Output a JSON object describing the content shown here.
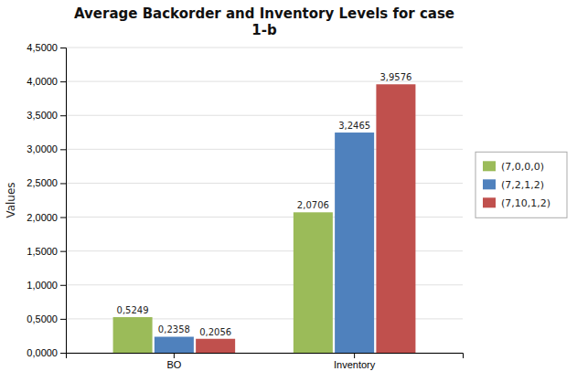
{
  "chart_data": {
    "type": "bar",
    "title": "Average Backorder and Inventory Levels for case\n1-b",
    "categories": [
      "BO",
      "Inventory"
    ],
    "series": [
      {
        "name": "(7,0,0,0)",
        "color": "#9BBB59",
        "values": [
          0.5249,
          2.0706
        ],
        "value_labels": [
          "0,5249",
          "2,0706"
        ]
      },
      {
        "name": "(7,2,1,2)",
        "color": "#4F81BD",
        "values": [
          0.2358,
          3.2465
        ],
        "value_labels": [
          "0,2358",
          "3,2465"
        ]
      },
      {
        "name": "(7,10,1,2)",
        "color": "#C0504D",
        "values": [
          0.2056,
          3.9576
        ],
        "value_labels": [
          "0,2056",
          "3,9576"
        ]
      }
    ],
    "ylabel": "Values",
    "ylim": [
      0,
      4.5
    ],
    "yticks": [
      {
        "value": 0.0,
        "label": "0,0000"
      },
      {
        "value": 0.5,
        "label": "0,5000"
      },
      {
        "value": 1.0,
        "label": "1,0000"
      },
      {
        "value": 1.5,
        "label": "1,5000"
      },
      {
        "value": 2.0,
        "label": "2,0000"
      },
      {
        "value": 2.5,
        "label": "2,5000"
      },
      {
        "value": 3.0,
        "label": "3,0000"
      },
      {
        "value": 3.5,
        "label": "3,5000"
      },
      {
        "value": 4.0,
        "label": "4,0000"
      },
      {
        "value": 4.5,
        "label": "4,5000"
      }
    ],
    "grid": true,
    "legend": "right",
    "data_labels": true
  }
}
